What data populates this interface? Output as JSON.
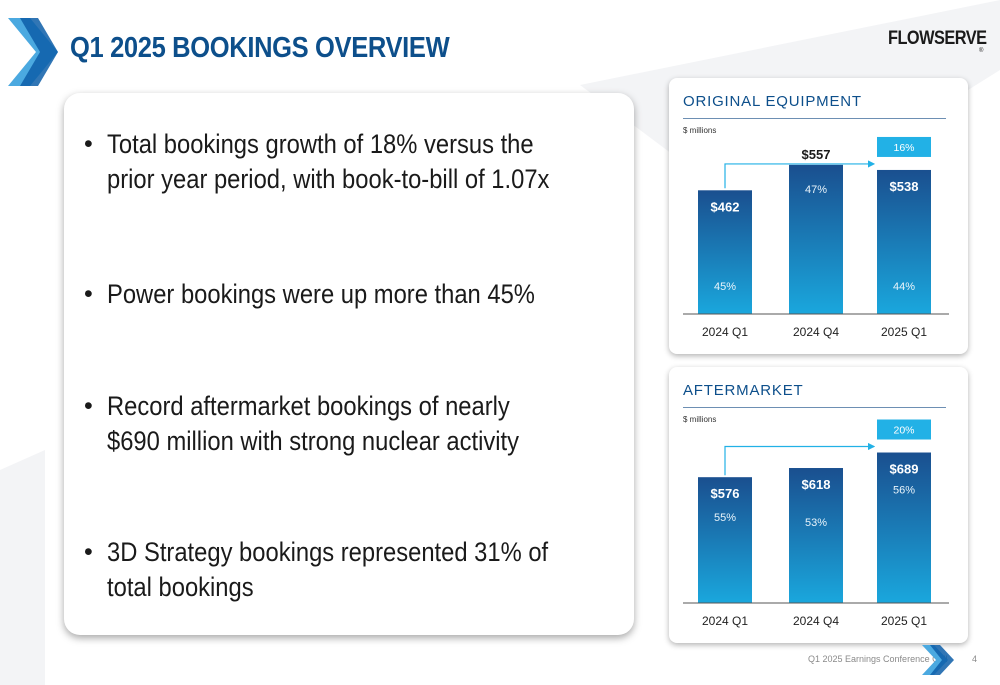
{
  "slide": {
    "title": "Q1 2025 BOOKINGS OVERVIEW",
    "logo_text": "FLOWSERVE",
    "logo_mark": "®",
    "footer": "Q1 2025 Earnings Conference Call",
    "page_number": "4"
  },
  "bullets": [
    "Total bookings growth of 18% versus the\nprior year period, with book-to-bill of 1.07x",
    "Power bookings were up more than 45%",
    "Record aftermarket bookings of nearly\n$690 million with strong nuclear activity",
    "3D Strategy bookings represented 31% of\ntotal bookings"
  ],
  "bullet_symbol": "•",
  "colors": {
    "title": "#0d4f8b",
    "bar_top": "#1a4f8f",
    "bar_bottom": "#1aa7dd",
    "growth_box": "#22b1e6",
    "arrow": "#22b1e6",
    "chevron_light": "#4ba9e0",
    "chevron_dark": "#0d5ea8"
  },
  "chart_data": [
    {
      "type": "bar",
      "title": "ORIGINAL EQUIPMENT",
      "unit_label": "$ millions",
      "categories": [
        "2024 Q1",
        "2024 Q4",
        "2025 Q1"
      ],
      "values": [
        462,
        557,
        538
      ],
      "value_labels": [
        "$462",
        "$557",
        "$538"
      ],
      "share_labels": [
        "45%",
        "47%",
        "44%"
      ],
      "growth_label": "16%",
      "growth_from": "2024 Q1",
      "growth_to": "2025 Q1",
      "ylim": [
        0,
        620
      ]
    },
    {
      "type": "bar",
      "title": "AFTERMARKET",
      "unit_label": "$ millions",
      "categories": [
        "2024 Q1",
        "2024 Q4",
        "2025 Q1"
      ],
      "values": [
        576,
        618,
        689
      ],
      "value_labels": [
        "$576",
        "$618",
        "$689"
      ],
      "share_labels": [
        "55%",
        "53%",
        "56%"
      ],
      "growth_label": "20%",
      "growth_from": "2024 Q1",
      "growth_to": "2025 Q1",
      "ylim": [
        0,
        760
      ]
    }
  ]
}
